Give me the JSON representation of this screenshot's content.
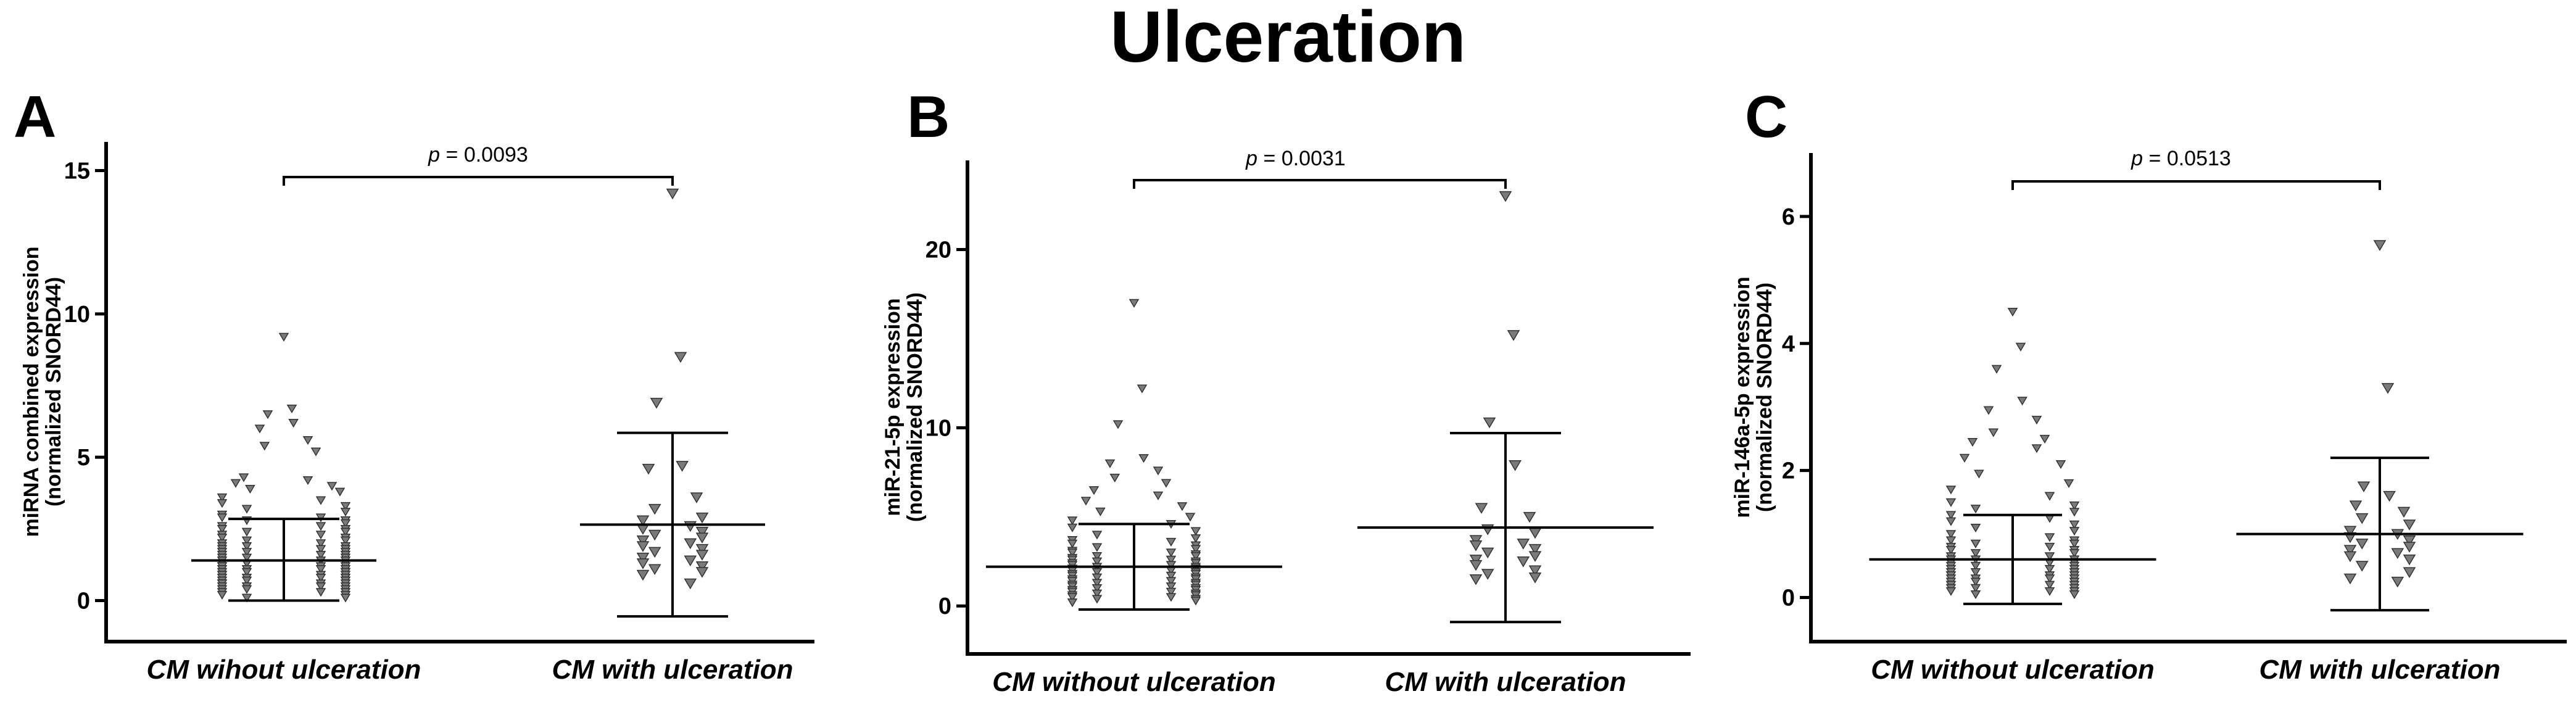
{
  "title": "Ulceration",
  "chart_data": [
    {
      "type": "scatter",
      "panel_label": "A",
      "ylabel_lines": [
        "miRNA combined expression",
        "(normalized SNORD44)"
      ],
      "categories": [
        "CM wihout ulceration",
        "CM with ulceration"
      ],
      "ylim": [
        -1,
        16
      ],
      "yticks": [
        0,
        5,
        10,
        15
      ],
      "p_prefix": "p",
      "p_value": "= 0.0093",
      "groups": [
        {
          "category": "CM wihout ulceration",
          "mean": 1.4,
          "sd_lower": 0.0,
          "sd_upper": 2.85,
          "values": [
            9.2,
            6.7,
            6.5,
            6.2,
            6.0,
            5.6,
            5.4,
            5.2,
            4.3,
            4.2,
            4.1,
            4.0,
            3.9,
            3.8,
            3.6,
            3.5,
            3.4,
            3.3,
            3.2,
            3.1,
            3.0,
            2.9,
            2.9,
            2.8,
            2.8,
            2.7,
            2.6,
            2.6,
            2.5,
            2.5,
            2.4,
            2.4,
            2.3,
            2.3,
            2.2,
            2.2,
            2.1,
            2.1,
            2.0,
            2.0,
            1.9,
            1.9,
            1.9,
            1.8,
            1.8,
            1.8,
            1.7,
            1.7,
            1.7,
            1.6,
            1.6,
            1.6,
            1.5,
            1.5,
            1.5,
            1.4,
            1.4,
            1.4,
            1.3,
            1.3,
            1.3,
            1.3,
            1.2,
            1.2,
            1.2,
            1.2,
            1.1,
            1.1,
            1.1,
            1.1,
            1.0,
            1.0,
            1.0,
            1.0,
            0.9,
            0.9,
            0.9,
            0.9,
            0.8,
            0.8,
            0.8,
            0.8,
            0.7,
            0.7,
            0.7,
            0.7,
            0.6,
            0.6,
            0.6,
            0.6,
            0.5,
            0.5,
            0.5,
            0.5,
            0.4,
            0.4,
            0.4,
            0.3,
            0.3,
            0.3,
            0.2,
            0.2,
            0.1,
            0.1
          ]
        },
        {
          "category": "CM with ulceration",
          "mean": 2.65,
          "sd_lower": -0.55,
          "sd_upper": 5.85,
          "values": [
            14.2,
            8.5,
            6.9,
            4.7,
            4.6,
            3.6,
            3.2,
            2.9,
            2.8,
            2.6,
            2.5,
            2.4,
            2.3,
            2.2,
            2.1,
            2.0,
            1.9,
            1.8,
            1.7,
            1.6,
            1.5,
            1.4,
            1.3,
            1.2,
            1.1,
            1.0,
            0.9,
            0.6
          ]
        }
      ]
    },
    {
      "type": "scatter",
      "panel_label": "B",
      "ylabel_lines": [
        "miR-21-5p expression",
        "(normalized SNORD44)"
      ],
      "categories": [
        "CM without ulceration",
        "CM with ulceration"
      ],
      "ylim": [
        -2,
        25
      ],
      "yticks": [
        0,
        10,
        20
      ],
      "p_prefix": "p",
      "p_value": "= 0.0031",
      "groups": [
        {
          "category": "CM without ulceration",
          "mean": 2.2,
          "sd_lower": -0.2,
          "sd_upper": 4.6,
          "values": [
            17.0,
            12.2,
            10.2,
            8.3,
            8.0,
            7.6,
            7.2,
            6.9,
            6.5,
            6.2,
            5.9,
            5.6,
            5.3,
            5.0,
            4.8,
            4.6,
            4.4,
            4.2,
            4.0,
            3.8,
            3.7,
            3.6,
            3.5,
            3.4,
            3.3,
            3.2,
            3.1,
            3.0,
            3.0,
            2.9,
            2.8,
            2.8,
            2.7,
            2.6,
            2.6,
            2.5,
            2.5,
            2.4,
            2.4,
            2.3,
            2.3,
            2.2,
            2.2,
            2.1,
            2.1,
            2.0,
            2.0,
            1.9,
            1.9,
            1.8,
            1.8,
            1.7,
            1.7,
            1.6,
            1.6,
            1.5,
            1.5,
            1.4,
            1.4,
            1.3,
            1.3,
            1.2,
            1.2,
            1.1,
            1.1,
            1.0,
            1.0,
            0.9,
            0.9,
            0.8,
            0.8,
            0.7,
            0.7,
            0.6,
            0.6,
            0.5,
            0.5,
            0.4,
            0.4,
            0.3,
            0.2
          ]
        },
        {
          "category": "CM with ulceration",
          "mean": 4.4,
          "sd_lower": -0.9,
          "sd_upper": 9.7,
          "values": [
            23.0,
            15.2,
            10.3,
            7.9,
            5.5,
            5.0,
            4.3,
            4.1,
            3.7,
            3.5,
            3.4,
            3.2,
            3.0,
            2.8,
            2.6,
            2.5,
            2.3,
            2.0,
            1.8,
            1.6,
            1.5
          ]
        }
      ]
    },
    {
      "type": "scatter",
      "panel_label": "C",
      "ylabel_lines": [
        "miR-146a-5p expression",
        "(normalized SNORD44)"
      ],
      "categories": [
        "CM without ulceration",
        "CM with ulceration"
      ],
      "ylim": [
        -0.5,
        7
      ],
      "yticks": [
        0,
        2,
        4,
        6
      ],
      "p_prefix": "p",
      "p_value": "= 0.0513",
      "groups": [
        {
          "category": "CM without ulceration",
          "mean": 0.6,
          "sd_lower": -0.1,
          "sd_upper": 1.3,
          "values": [
            4.5,
            3.95,
            3.6,
            3.1,
            2.95,
            2.8,
            2.6,
            2.5,
            2.45,
            2.35,
            2.2,
            2.1,
            1.95,
            1.8,
            1.7,
            1.6,
            1.5,
            1.45,
            1.4,
            1.35,
            1.3,
            1.25,
            1.2,
            1.15,
            1.1,
            1.05,
            1.0,
            0.95,
            0.9,
            0.9,
            0.85,
            0.85,
            0.8,
            0.8,
            0.75,
            0.75,
            0.7,
            0.7,
            0.65,
            0.65,
            0.6,
            0.6,
            0.6,
            0.55,
            0.55,
            0.55,
            0.5,
            0.5,
            0.5,
            0.45,
            0.45,
            0.45,
            0.4,
            0.4,
            0.4,
            0.4,
            0.35,
            0.35,
            0.35,
            0.35,
            0.3,
            0.3,
            0.3,
            0.3,
            0.25,
            0.25,
            0.25,
            0.25,
            0.2,
            0.2,
            0.2,
            0.2,
            0.15,
            0.15,
            0.15,
            0.1,
            0.1,
            0.1,
            0.05,
            0.05
          ]
        },
        {
          "category": "CM with ulceration",
          "mean": 1.0,
          "sd_lower": -0.2,
          "sd_upper": 2.2,
          "values": [
            5.55,
            3.3,
            1.75,
            1.6,
            1.45,
            1.35,
            1.25,
            1.15,
            1.05,
            1.0,
            0.95,
            0.9,
            0.85,
            0.8,
            0.75,
            0.7,
            0.65,
            0.6,
            0.5,
            0.4,
            0.3,
            0.25
          ]
        }
      ]
    }
  ]
}
